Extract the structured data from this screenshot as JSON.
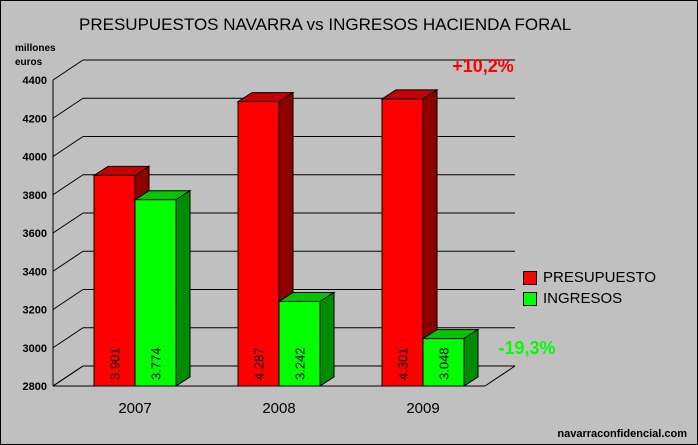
{
  "chart_data": {
    "type": "bar",
    "title": "PRESUPUESTOS NAVARRA vs INGRESOS HACIENDA FORAL",
    "ylabel": [
      "millones",
      "euros"
    ],
    "categories": [
      "2007",
      "2008",
      "2009"
    ],
    "ylim": [
      2800,
      4400
    ],
    "yticks": [
      2800,
      3000,
      3200,
      3400,
      3600,
      3800,
      4000,
      4200,
      4400
    ],
    "grid": true,
    "legend_position": "right",
    "series": [
      {
        "name": "PRESUPUESTO",
        "values": [
          3901,
          4287,
          4301
        ],
        "labels": [
          "3.901",
          "4.287",
          "4.301"
        ],
        "color": "#ff0000"
      },
      {
        "name": "INGRESOS",
        "values": [
          3774,
          3242,
          3048
        ],
        "labels": [
          "3.774",
          "3.242",
          "3.048"
        ],
        "color": "#00ff00"
      }
    ],
    "annotations": [
      {
        "text": "+10,2%",
        "series": "PRESUPUESTO",
        "color": "#ff0000"
      },
      {
        "text": "-19,3%",
        "series": "INGRESOS",
        "color": "#00ff00"
      }
    ]
  },
  "footer": {
    "source": "navarraconfidencial.com"
  }
}
